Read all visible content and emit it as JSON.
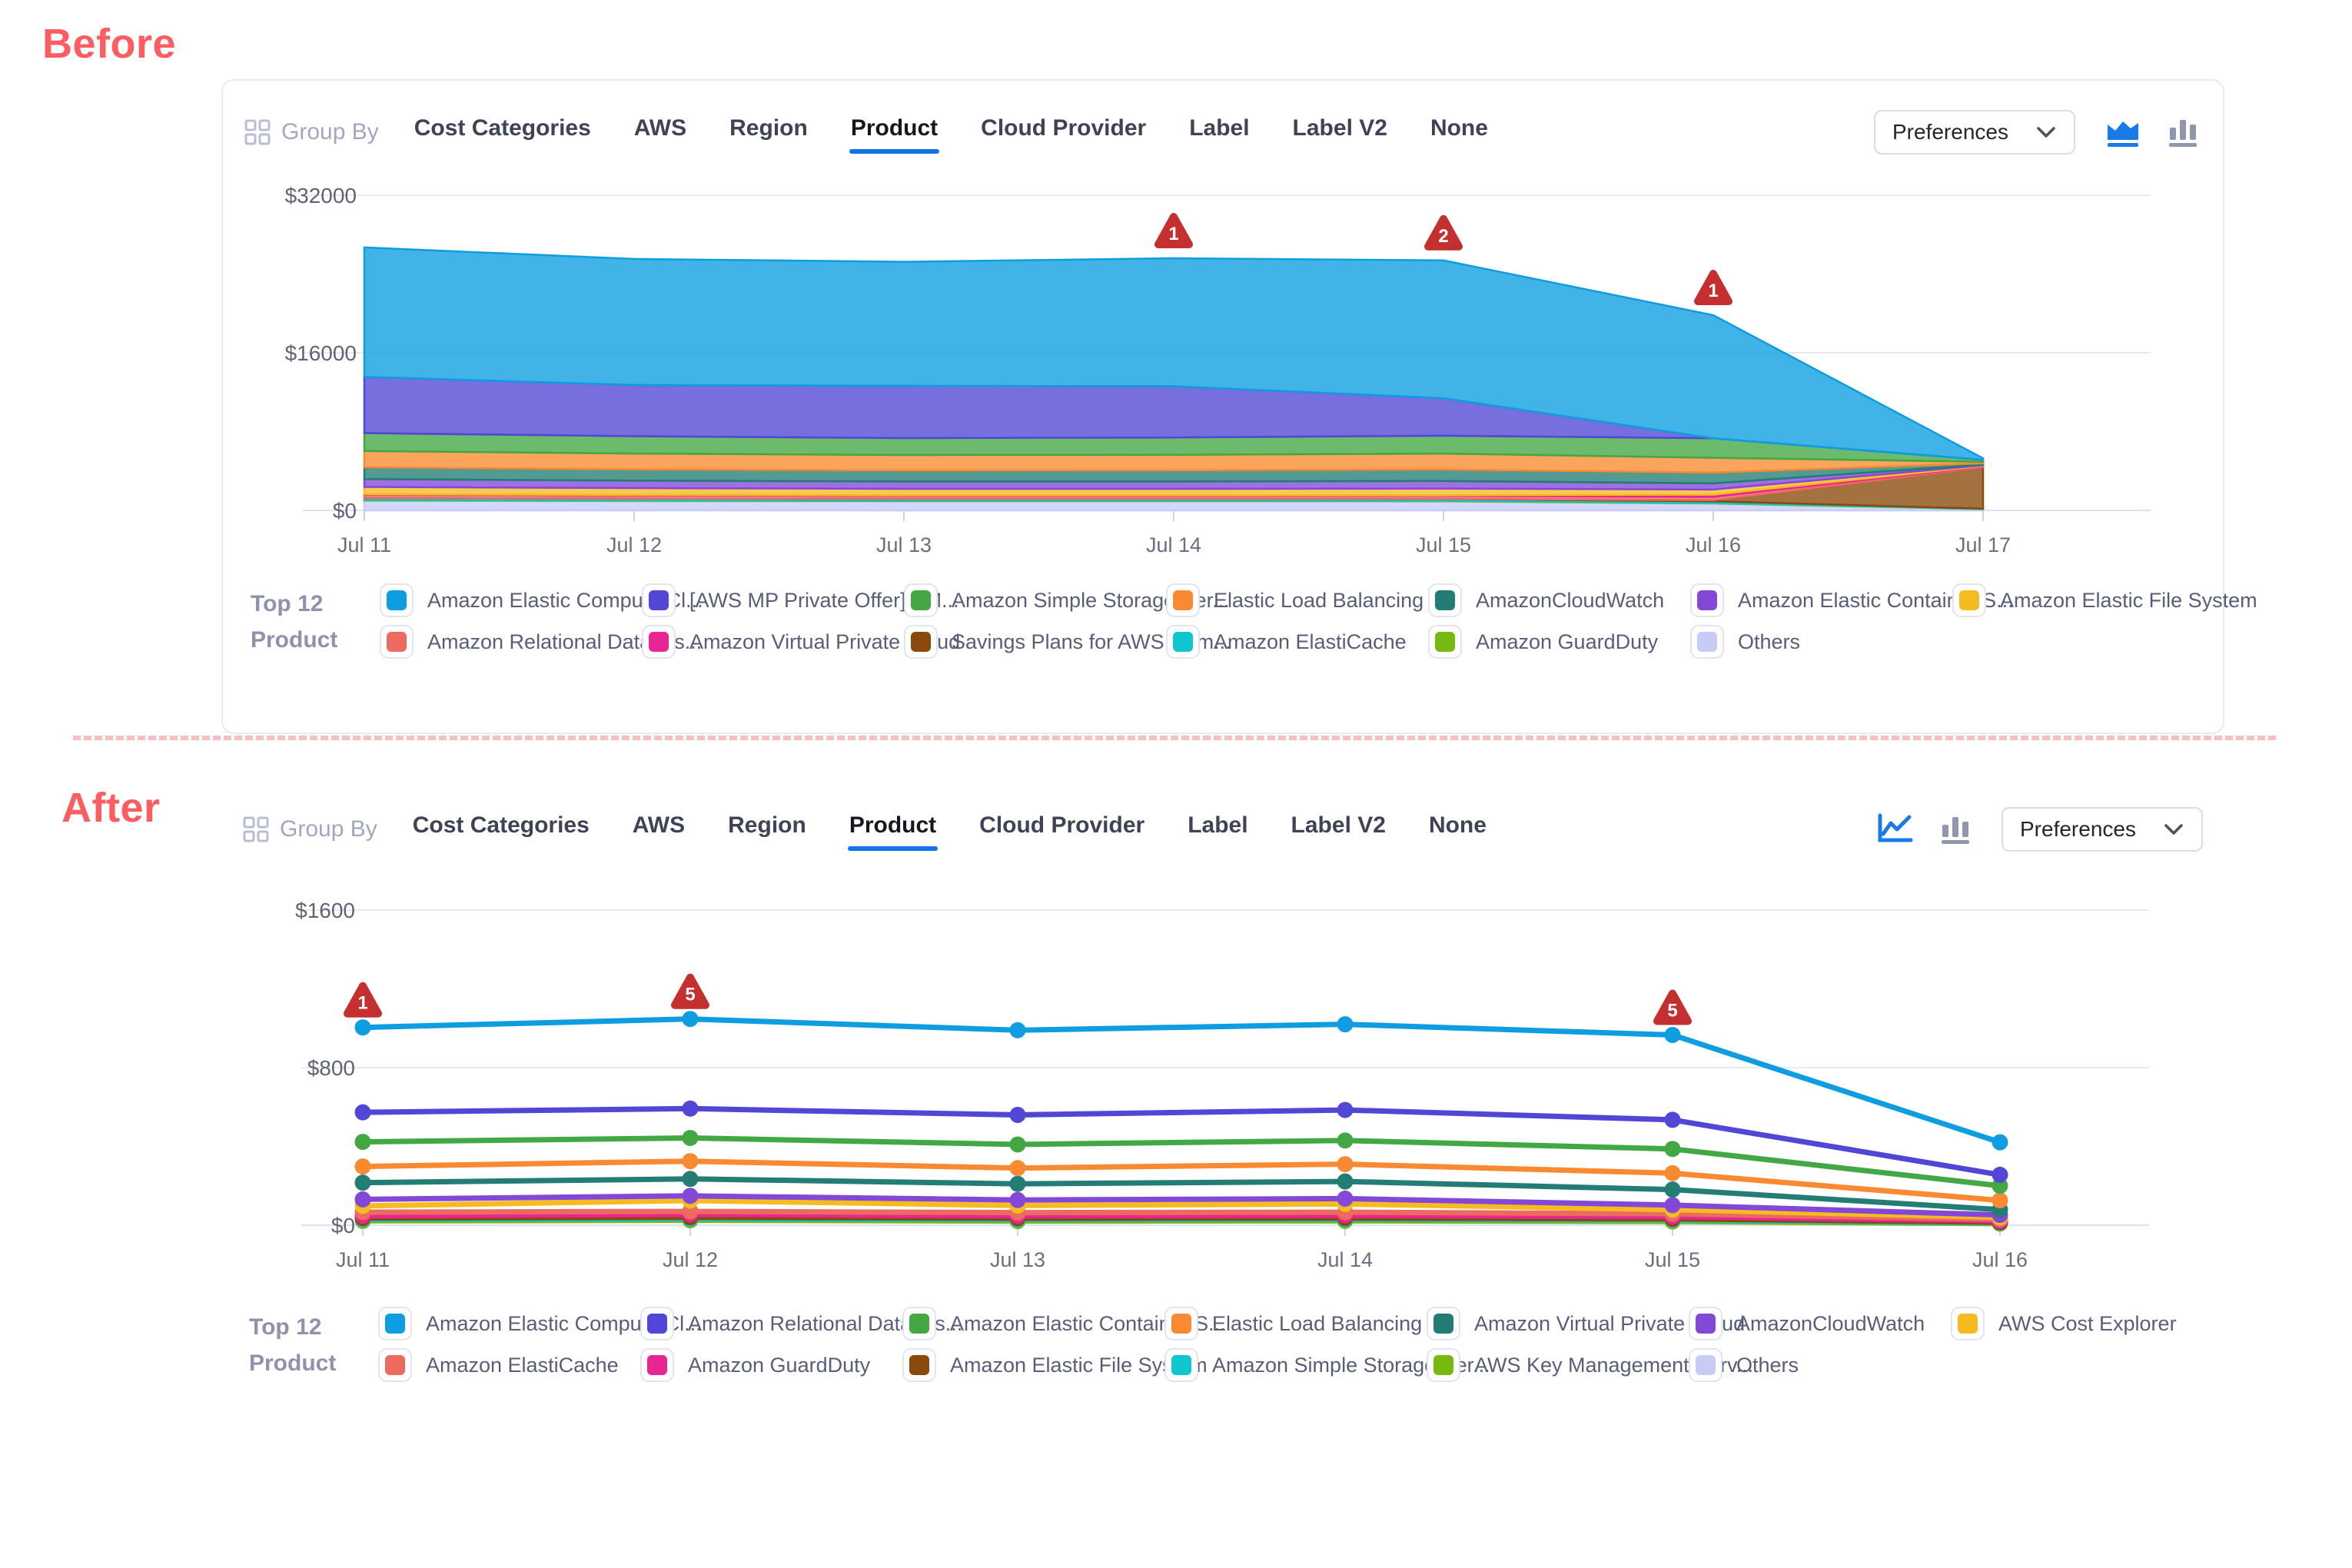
{
  "labels": {
    "before": "Before",
    "after": "After"
  },
  "panels": {
    "before": {
      "group_by_label": "Group By",
      "tabs": [
        {
          "label": "Cost Categories"
        },
        {
          "label": "AWS"
        },
        {
          "label": "Region"
        },
        {
          "label": "Product",
          "active": true
        },
        {
          "label": "Cloud Provider"
        },
        {
          "label": "Label"
        },
        {
          "label": "Label V2"
        },
        {
          "label": "None"
        }
      ],
      "preferences_label": "Preferences",
      "chart_type_active": "area",
      "legend_title1": "Top 12",
      "legend_title2": "Product",
      "legend_rows": [
        [
          {
            "label": "Amazon Elastic Compute Cl...",
            "color": "#0d9de0"
          },
          {
            "label": "[AWS MP Private Offer] - M...",
            "color": "#5246d6"
          },
          {
            "label": "Amazon Simple Storage Ser...",
            "color": "#43a843"
          },
          {
            "label": "Elastic Load Balancing",
            "color": "#f98a31"
          },
          {
            "label": "AmazonCloudWatch",
            "color": "#237d74"
          },
          {
            "label": "Amazon Elastic Container S...",
            "color": "#8448d8"
          },
          {
            "label": "Amazon Elastic File System",
            "color": "#f5bb20"
          }
        ],
        [
          {
            "label": "Amazon Relational Databas...",
            "color": "#ed6a60"
          },
          {
            "label": "Amazon Virtual Private Cloud",
            "color": "#e72593"
          },
          {
            "label": "Savings Plans for AWS Com...",
            "color": "#8a4a0c"
          },
          {
            "label": "Amazon ElastiCache",
            "color": "#0fc5ce"
          },
          {
            "label": "Amazon GuardDuty",
            "color": "#76ba10"
          },
          {
            "label": "Others",
            "color": "#c9cbf7"
          }
        ]
      ]
    },
    "after": {
      "group_by_label": "Group By",
      "tabs": [
        {
          "label": "Cost Categories"
        },
        {
          "label": "AWS"
        },
        {
          "label": "Region"
        },
        {
          "label": "Product",
          "active": true
        },
        {
          "label": "Cloud Provider"
        },
        {
          "label": "Label"
        },
        {
          "label": "Label V2"
        },
        {
          "label": "None"
        }
      ],
      "preferences_label": "Preferences",
      "chart_type_active": "line",
      "legend_title1": "Top 12",
      "legend_title2": "Product",
      "legend_rows": [
        [
          {
            "label": "Amazon Elastic Compute Cl...",
            "color": "#0d9de0"
          },
          {
            "label": "Amazon Relational Databas...",
            "color": "#5246d6"
          },
          {
            "label": "Amazon Elastic Container S...",
            "color": "#43a843"
          },
          {
            "label": "Elastic Load Balancing",
            "color": "#f98a31"
          },
          {
            "label": "Amazon Virtual Private Cloud",
            "color": "#237d74"
          },
          {
            "label": "AmazonCloudWatch",
            "color": "#8448d8"
          },
          {
            "label": "AWS Cost Explorer",
            "color": "#f5bb20"
          }
        ],
        [
          {
            "label": "Amazon ElastiCache",
            "color": "#ed6a60"
          },
          {
            "label": "Amazon GuardDuty",
            "color": "#e72593"
          },
          {
            "label": "Amazon Elastic File System",
            "color": "#8a4a0c"
          },
          {
            "label": "Amazon Simple Storage Ser...",
            "color": "#0fc5ce"
          },
          {
            "label": "AWS Key Management Serv...",
            "color": "#76ba10"
          },
          {
            "label": "Others",
            "color": "#c9cbf7"
          }
        ]
      ]
    }
  },
  "badge_color": "#c4302f",
  "chart_data": [
    {
      "type": "area",
      "title": "",
      "xlabel": "",
      "ylabel": "",
      "legend_position": "bottom",
      "grid": true,
      "categories": [
        "Jul 11",
        "Jul 12",
        "Jul 13",
        "Jul 14",
        "Jul 15",
        "Jul 16",
        "Jul 17"
      ],
      "ymax": 32000,
      "ylim": [
        0,
        32000
      ],
      "yticks": [
        {
          "label": "$0",
          "value": 0
        },
        {
          "label": "$16000",
          "value": 16000
        },
        {
          "label": "$32000",
          "value": 32000
        }
      ],
      "badges": [
        {
          "x": "Jul 14",
          "label": "1"
        },
        {
          "x": "Jul 15",
          "label": "2"
        },
        {
          "x": "Jul 16",
          "label": "1"
        }
      ],
      "series": [
        {
          "name": "Others",
          "color": "#c9cbf7",
          "values": [
            990,
            950,
            930,
            930,
            920,
            700,
            120
          ]
        },
        {
          "name": "Amazon GuardDuty",
          "color": "#76ba10",
          "values": [
            60,
            60,
            55,
            55,
            55,
            50,
            15
          ]
        },
        {
          "name": "Amazon ElastiCache",
          "color": "#0fc5ce",
          "values": [
            200,
            190,
            185,
            185,
            190,
            170,
            40
          ]
        },
        {
          "name": "Savings Plans for AWS Compute usage",
          "color": "#8a4a0c",
          "values": [
            0,
            0,
            0,
            0,
            0,
            120,
            4200
          ]
        },
        {
          "name": "Amazon Relational Database Service",
          "color": "#ed6a60",
          "values": [
            330,
            310,
            300,
            300,
            310,
            330,
            70
          ]
        },
        {
          "name": "Amazon Virtual Private Cloud",
          "color": "#e72593",
          "values": [
            60,
            60,
            60,
            60,
            60,
            230,
            60
          ]
        },
        {
          "name": "Amazon Elastic File System",
          "color": "#f5bb20",
          "values": [
            740,
            690,
            660,
            660,
            680,
            520,
            70
          ]
        },
        {
          "name": "Amazon Elastic Container Service",
          "color": "#8448d8",
          "values": [
            800,
            760,
            750,
            750,
            770,
            620,
            80
          ]
        },
        {
          "name": "AmazonCloudWatch",
          "color": "#237d74",
          "values": [
            1200,
            1150,
            1120,
            1130,
            1160,
            1100,
            120
          ]
        },
        {
          "name": "Elastic Load Balancing",
          "color": "#f98a31",
          "values": [
            1650,
            1600,
            1560,
            1570,
            1620,
            1500,
            160
          ]
        },
        {
          "name": "Amazon Simple Storage Service",
          "color": "#43a843",
          "values": [
            1820,
            1760,
            1720,
            1760,
            1820,
            1980,
            200
          ]
        },
        {
          "name": "[AWS MP Private Offer] - M...",
          "color": "#5246d6",
          "values": [
            5700,
            5200,
            5300,
            5200,
            3800,
            0,
            0
          ]
        },
        {
          "name": "Amazon Elastic Compute Cloud",
          "color": "#0d9de0",
          "values": [
            13150,
            12800,
            12600,
            13000,
            14000,
            12500,
            150
          ]
        }
      ]
    },
    {
      "type": "line",
      "title": "",
      "xlabel": "",
      "ylabel": "",
      "legend_position": "bottom",
      "grid": true,
      "categories": [
        "Jul 11",
        "Jul 12",
        "Jul 13",
        "Jul 14",
        "Jul 15",
        "Jul 16"
      ],
      "ymax": 1600,
      "ylim": [
        0,
        1600
      ],
      "yticks": [
        {
          "label": "$0",
          "value": 0
        },
        {
          "label": "$800",
          "value": 800
        },
        {
          "label": "$1600",
          "value": 1600
        }
      ],
      "badges": [
        {
          "x": "Jul 11",
          "label": "1"
        },
        {
          "x": "Jul 12",
          "label": "5"
        },
        {
          "x": "Jul 15",
          "label": "5"
        }
      ],
      "series": [
        {
          "name": "Others",
          "color": "#c9cbf7",
          "values": [
            28,
            30,
            26,
            27,
            24,
            18
          ]
        },
        {
          "name": "AWS Key Management Service",
          "color": "#76ba10",
          "values": [
            22,
            25,
            21,
            22,
            19,
            8
          ]
        },
        {
          "name": "Amazon Simple Storage Service",
          "color": "#0fc5ce",
          "values": [
            30,
            33,
            29,
            30,
            27,
            12
          ]
        },
        {
          "name": "Amazon Elastic File System",
          "color": "#8a4a0c",
          "values": [
            36,
            40,
            35,
            36,
            32,
            15
          ]
        },
        {
          "name": "Amazon GuardDuty",
          "color": "#e72593",
          "values": [
            48,
            55,
            48,
            50,
            44,
            22
          ]
        },
        {
          "name": "Amazon ElastiCache",
          "color": "#ed6a60",
          "values": [
            66,
            70,
            64,
            66,
            58,
            30
          ]
        },
        {
          "name": "AWS Cost Explorer",
          "color": "#f5bb20",
          "values": [
            98,
            125,
            100,
            108,
            79,
            40
          ]
        },
        {
          "name": "AmazonCloudWatch",
          "color": "#8448d8",
          "values": [
            131,
            149,
            128,
            135,
            102,
            52
          ]
        },
        {
          "name": "Amazon Virtual Private Cloud",
          "color": "#237d74",
          "values": [
            216,
            235,
            210,
            222,
            181,
            79
          ]
        },
        {
          "name": "Elastic Load Balancing",
          "color": "#f98a31",
          "values": [
            298,
            325,
            290,
            310,
            264,
            126
          ]
        },
        {
          "name": "Amazon Elastic Container Service",
          "color": "#43a843",
          "values": [
            423,
            443,
            410,
            430,
            387,
            200
          ]
        },
        {
          "name": "Amazon Relational Database Service",
          "color": "#5246d6",
          "values": [
            573,
            592,
            560,
            585,
            535,
            256
          ]
        },
        {
          "name": "Amazon Elastic Compute Cloud",
          "color": "#0d9de0",
          "values": [
            1004,
            1047,
            990,
            1020,
            966,
            421
          ]
        }
      ]
    }
  ]
}
